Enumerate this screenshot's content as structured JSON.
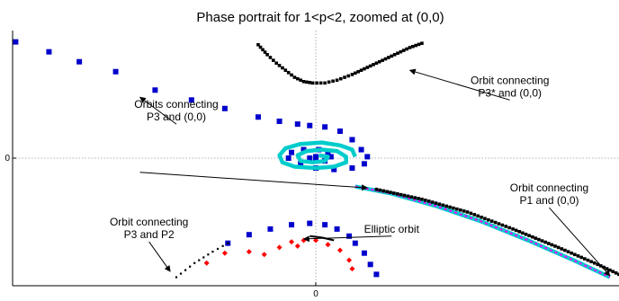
{
  "chart_data": {
    "type": "scatter",
    "title": "Phase portrait for 1<p<2, zoomed at (0,0)",
    "xlabel": "",
    "ylabel": "",
    "xlim": [
      -1.0,
      1.0
    ],
    "ylim": [
      -0.9,
      0.9
    ],
    "x_ticks": [
      {
        "value": 0,
        "label": "0"
      }
    ],
    "y_ticks": [
      {
        "value": 0,
        "label": "0"
      }
    ],
    "grid": "dotted crosshair at 0",
    "series": [
      {
        "color": "#000000",
        "marker": "dense-dots",
        "points": [
          [
            -0.19,
            0.8
          ],
          [
            -0.16,
            0.73
          ],
          [
            -0.13,
            0.67
          ],
          [
            -0.1,
            0.62
          ],
          [
            -0.07,
            0.57
          ],
          [
            -0.04,
            0.54
          ],
          [
            -0.01,
            0.53
          ],
          [
            0.03,
            0.53
          ],
          [
            0.07,
            0.55
          ],
          [
            0.12,
            0.59
          ],
          [
            0.17,
            0.64
          ],
          [
            0.22,
            0.69
          ],
          [
            0.27,
            0.74
          ],
          [
            0.31,
            0.78
          ],
          [
            0.35,
            0.81
          ]
        ]
      },
      {
        "color": "#0000cc",
        "marker": "square",
        "points": [
          [
            -0.99,
            0.82
          ],
          [
            -0.88,
            0.75
          ],
          [
            -0.78,
            0.68
          ],
          [
            -0.66,
            0.61
          ],
          [
            -0.53,
            0.48
          ],
          [
            -0.41,
            0.41
          ],
          [
            -0.3,
            0.35
          ],
          [
            -0.19,
            0.29
          ],
          [
            -0.12,
            0.26
          ],
          [
            -0.06,
            0.24
          ],
          [
            -0.02,
            0.23
          ],
          [
            0.03,
            0.22
          ],
          [
            0.08,
            0.19
          ],
          [
            0.12,
            0.13
          ],
          [
            0.15,
            0.06
          ],
          [
            0.17,
            0.01
          ],
          [
            0.16,
            -0.04
          ],
          [
            0.12,
            -0.07
          ],
          [
            0.06,
            -0.08
          ],
          [
            0.0,
            -0.07
          ],
          [
            -0.05,
            -0.04
          ],
          [
            -0.09,
            0.0
          ],
          [
            -0.08,
            0.04
          ],
          [
            -0.04,
            0.06
          ],
          [
            0.01,
            0.06
          ],
          [
            0.04,
            0.04
          ],
          [
            0.05,
            0.01
          ],
          [
            0.03,
            -0.02
          ],
          [
            0.0,
            -0.02
          ],
          [
            -0.02,
            0.0
          ],
          [
            0.0,
            0.01
          ]
        ]
      },
      {
        "color": "#ff00ff",
        "marker": "line",
        "points": [
          [
            0.13,
            0.01
          ],
          [
            0.12,
            0.06
          ],
          [
            0.08,
            0.09
          ],
          [
            0.02,
            0.11
          ],
          [
            -0.05,
            0.1
          ],
          [
            -0.1,
            0.07
          ],
          [
            -0.12,
            0.02
          ],
          [
            -0.11,
            -0.03
          ],
          [
            -0.07,
            -0.06
          ],
          [
            0.0,
            -0.07
          ],
          [
            0.06,
            -0.06
          ],
          [
            0.1,
            -0.03
          ],
          [
            0.1,
            0.01
          ],
          [
            0.07,
            0.05
          ],
          [
            0.02,
            0.06
          ],
          [
            -0.03,
            0.05
          ],
          [
            -0.06,
            0.02
          ],
          [
            -0.05,
            -0.02
          ],
          [
            -0.01,
            -0.03
          ],
          [
            0.03,
            -0.02
          ],
          [
            0.04,
            0.01
          ],
          [
            0.01,
            0.02
          ]
        ]
      },
      {
        "color": "#00cccc",
        "marker": "line",
        "points": [
          [
            0.13,
            -0.2
          ],
          [
            0.25,
            -0.25
          ],
          [
            0.4,
            -0.34
          ],
          [
            0.55,
            -0.45
          ],
          [
            0.7,
            -0.58
          ],
          [
            0.85,
            -0.72
          ],
          [
            0.97,
            -0.84
          ]
        ]
      },
      {
        "color": "#00cccc",
        "marker": "line",
        "points": [
          [
            0.13,
            0.01
          ],
          [
            0.12,
            0.06
          ],
          [
            0.08,
            0.09
          ],
          [
            0.02,
            0.11
          ],
          [
            -0.05,
            0.1
          ],
          [
            -0.1,
            0.07
          ],
          [
            -0.12,
            0.02
          ],
          [
            -0.11,
            -0.03
          ],
          [
            -0.07,
            -0.06
          ],
          [
            0.0,
            -0.07
          ],
          [
            0.06,
            -0.06
          ],
          [
            0.1,
            -0.03
          ],
          [
            0.1,
            0.01
          ],
          [
            0.07,
            0.05
          ],
          [
            0.02,
            0.06
          ],
          [
            -0.03,
            0.05
          ],
          [
            -0.06,
            0.02
          ],
          [
            -0.05,
            -0.02
          ],
          [
            -0.01,
            -0.03
          ],
          [
            0.03,
            -0.02
          ],
          [
            0.04,
            0.01
          ],
          [
            0.01,
            0.02
          ]
        ]
      },
      {
        "color": "#ff00ff",
        "marker": "line",
        "points": [
          [
            0.13,
            -0.2
          ],
          [
            0.25,
            -0.25
          ],
          [
            0.4,
            -0.34
          ],
          [
            0.55,
            -0.45
          ],
          [
            0.7,
            -0.58
          ],
          [
            0.85,
            -0.72
          ],
          [
            0.97,
            -0.84
          ]
        ]
      },
      {
        "color": "#000000",
        "marker": "dense-dots",
        "points": [
          [
            0.2,
            -0.22
          ],
          [
            0.35,
            -0.29
          ],
          [
            0.5,
            -0.38
          ],
          [
            0.65,
            -0.5
          ],
          [
            0.8,
            -0.63
          ],
          [
            0.93,
            -0.75
          ],
          [
            1.0,
            -0.82
          ]
        ]
      },
      {
        "color": "#0000cc",
        "marker": "square",
        "points": [
          [
            -0.29,
            -0.6
          ],
          [
            -0.22,
            -0.54
          ],
          [
            -0.15,
            -0.5
          ],
          [
            -0.08,
            -0.47
          ],
          [
            -0.02,
            -0.46
          ],
          [
            0.03,
            -0.47
          ],
          [
            0.07,
            -0.5
          ],
          [
            0.11,
            -0.55
          ],
          [
            0.13,
            -0.6
          ],
          [
            0.16,
            -0.67
          ],
          [
            0.18,
            -0.75
          ],
          [
            0.2,
            -0.82
          ]
        ]
      },
      {
        "color": "#000000",
        "marker": "sparse-dots",
        "points": [
          [
            -0.46,
            -0.84
          ],
          [
            -0.4,
            -0.74
          ],
          [
            -0.34,
            -0.66
          ],
          [
            -0.29,
            -0.6
          ]
        ]
      },
      {
        "color": "#ff0000",
        "marker": "diamond",
        "points": [
          [
            -0.22,
            -0.66
          ],
          [
            -0.17,
            -0.68
          ],
          [
            -0.12,
            -0.63
          ],
          [
            -0.08,
            -0.59
          ],
          [
            -0.04,
            -0.58
          ],
          [
            0.0,
            -0.58
          ],
          [
            0.04,
            -0.61
          ],
          [
            0.08,
            -0.65
          ],
          [
            0.11,
            -0.72
          ],
          [
            0.12,
            -0.78
          ],
          [
            -0.06,
            -0.62
          ],
          [
            -0.3,
            -0.67
          ],
          [
            -0.36,
            -0.74
          ]
        ]
      },
      {
        "color": "#000000",
        "marker": "line",
        "points": [
          [
            -0.02,
            -0.55
          ],
          [
            0.02,
            -0.56
          ],
          [
            0.06,
            -0.58
          ]
        ]
      }
    ],
    "annotations": [
      {
        "lines": [
          "Orbit connecting",
          "P3* and (0,0)"
        ],
        "from": [
          0.64,
          0.41
        ],
        "to": [
          0.31,
          0.62
        ]
      },
      {
        "lines": [
          "Orbits connecting",
          "P3 and (0,0)"
        ],
        "from": [
          -0.46,
          0.24
        ],
        "to": [
          -0.58,
          0.43
        ]
      },
      {
        "lines": [],
        "from": [
          -0.58,
          -0.1
        ],
        "to": [
          0.17,
          -0.21
        ]
      },
      {
        "lines": [
          "Orbit connecting",
          "P1 and (0,0)"
        ],
        "from": [
          0.77,
          -0.35
        ],
        "to": [
          0.97,
          -0.83
        ]
      },
      {
        "lines": [
          "Orbit connecting",
          "P3 and P2"
        ],
        "from": [
          -0.55,
          -0.59
        ],
        "to": [
          -0.48,
          -0.8
        ]
      },
      {
        "lines": [
          "Elliptic orbit"
        ],
        "from": [
          0.25,
          -0.55
        ],
        "to": [
          -0.04,
          -0.57
        ]
      }
    ]
  }
}
